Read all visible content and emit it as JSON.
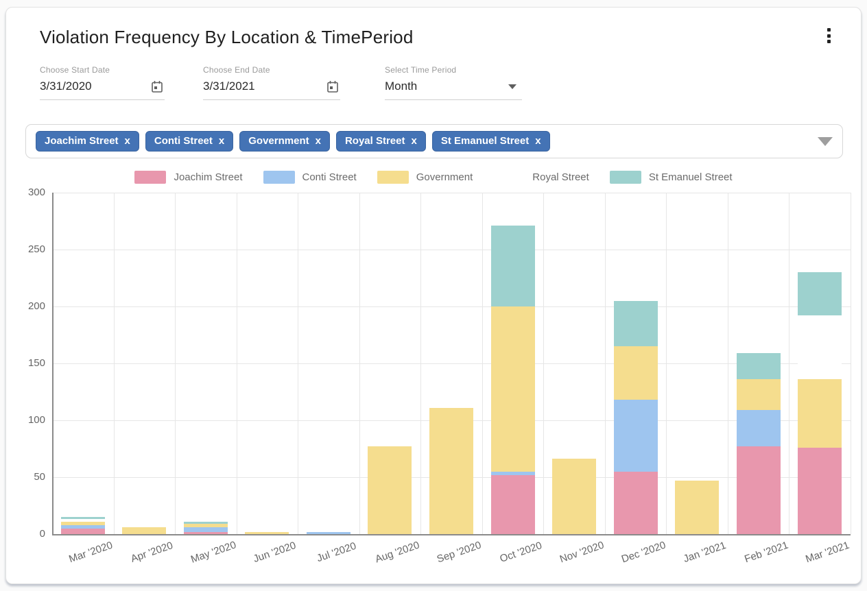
{
  "header": {
    "title": "Violation Frequency By Location & TimePeriod",
    "menu_icon": "kebab-menu-icon"
  },
  "filters": {
    "start_date": {
      "label": "Choose Start Date",
      "value": "3/31/2020",
      "icon": "calendar-icon"
    },
    "end_date": {
      "label": "Choose End Date",
      "value": "3/31/2021",
      "icon": "calendar-icon"
    },
    "time_period": {
      "label": "Select Time Period",
      "value": "Month",
      "icon": "dropdown-arrow-icon"
    }
  },
  "location_filter": {
    "chips": [
      {
        "label": "Joachim Street",
        "remove_label": "x"
      },
      {
        "label": "Conti Street",
        "remove_label": "x"
      },
      {
        "label": "Government",
        "remove_label": "x"
      },
      {
        "label": "Royal Street",
        "remove_label": "x"
      },
      {
        "label": "St Emanuel Street",
        "remove_label": "x"
      }
    ],
    "dropdown_icon": "dropdown-arrow-icon"
  },
  "chart_data": {
    "type": "bar",
    "stacked": true,
    "title": "",
    "xlabel": "",
    "ylabel": "",
    "ylim": [
      0,
      300
    ],
    "y_ticks": [
      0,
      50,
      100,
      150,
      200,
      250,
      300
    ],
    "grid": true,
    "legend_position": "top",
    "categories": [
      "Mar '2020",
      "Apr '2020",
      "May '2020",
      "Jun '2020",
      "Jul '2020",
      "Aug '2020",
      "Sep '2020",
      "Oct '2020",
      "Nov '2020",
      "Dec '2020",
      "Jan '2021",
      "Feb '2021",
      "Mar '2021"
    ],
    "series": [
      {
        "name": "Joachim Street",
        "color": "#e897ad",
        "values": [
          5,
          0,
          2,
          0,
          0,
          0,
          0,
          52,
          0,
          55,
          0,
          77,
          76
        ]
      },
      {
        "name": "Conti Street",
        "color": "#9ec5ef",
        "values": [
          3,
          0,
          4,
          0,
          2,
          0,
          0,
          3,
          0,
          63,
          0,
          32,
          0
        ]
      },
      {
        "name": "Government",
        "color": "#f5dd8e",
        "values": [
          3,
          6,
          3,
          2,
          0,
          77,
          111,
          145,
          66,
          47,
          47,
          27,
          60
        ]
      },
      {
        "name": "Royal Street",
        "color": "#ffffff",
        "values": [
          2,
          0,
          0,
          0,
          0,
          0,
          0,
          0,
          0,
          0,
          0,
          0,
          56
        ]
      },
      {
        "name": "St Emanuel Street",
        "color": "#9dd1ce",
        "values": [
          2,
          0,
          2,
          0,
          0,
          0,
          0,
          71,
          0,
          40,
          0,
          23,
          38
        ]
      }
    ]
  },
  "colors": {
    "chip_background": "#4473b5",
    "axis_line": "#8a8a8a",
    "grid_line": "#e6e6e6"
  }
}
